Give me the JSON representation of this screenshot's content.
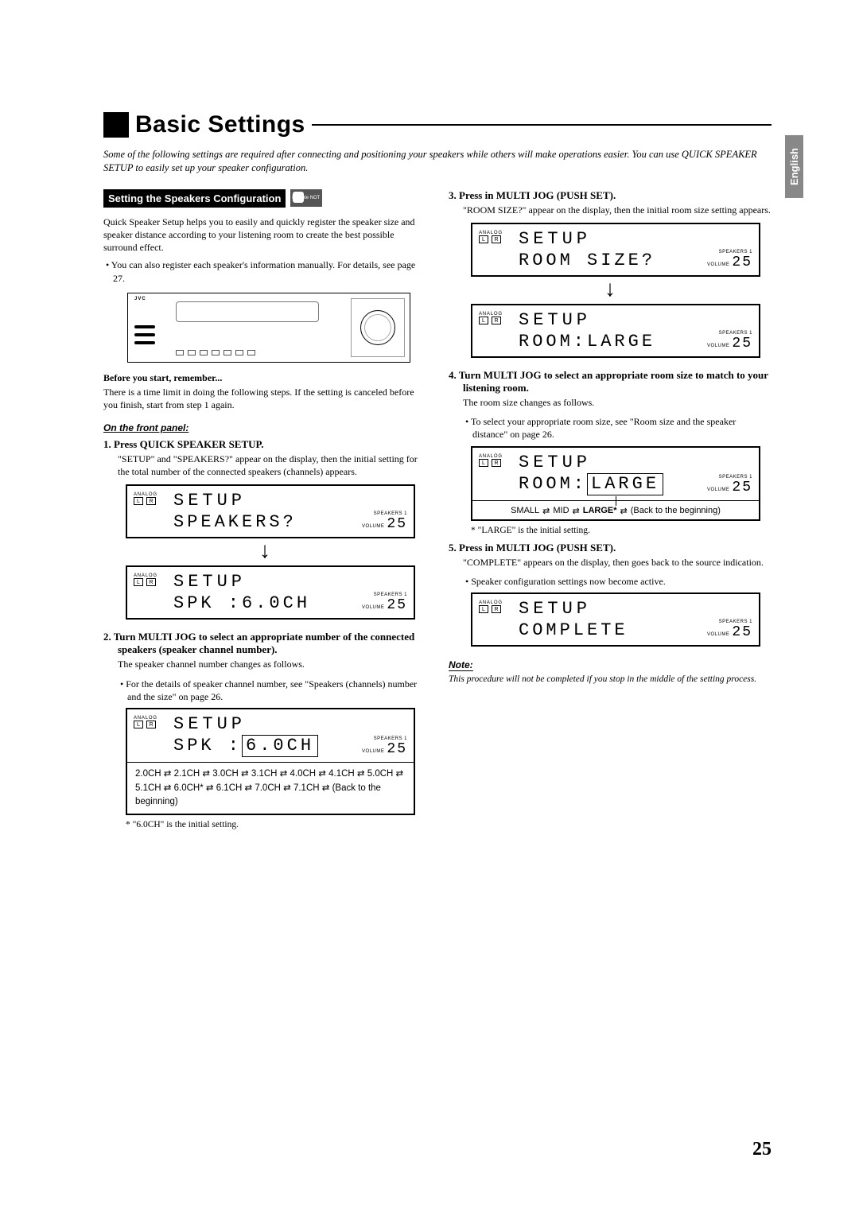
{
  "page_title": "Basic Settings",
  "intro_text": "Some of the following settings are required after connecting and positioning your speakers while others will make operations easier. You can use QUICK SPEAKER SETUP to easily set up your speaker configuration.",
  "side_tab": "English",
  "page_number": "25",
  "section_header": "Setting the Speakers Configuration",
  "remote_not_label": "Remote NOT",
  "left_column": {
    "intro": "Quick Speaker Setup helps you to easily and quickly register the speaker size and speaker distance according to your listening room to create the best possible surround effect.",
    "bullets": [
      "You can also register each speaker's information manually. For details, see page 27."
    ],
    "device_label": "JVC",
    "before_heading": "Before you start, remember...",
    "before_text": "There is a time limit in doing the following steps. If the setting is canceled before you finish, start from step 1 again.",
    "panel_label": "On the front panel:",
    "step1": {
      "heading": "1.  Press QUICK SPEAKER SETUP.",
      "body": "\"SETUP\" and \"SPEAKERS?\" appear on the display, then the initial setting for the total number of the connected speakers (channels) appears."
    },
    "display1": {
      "line1": "SETUP",
      "line2": "SPEAKERS?"
    },
    "display2": {
      "line1": "SETUP",
      "line2": "SPK :6.0CH"
    },
    "step2": {
      "heading": "2.  Turn MULTI JOG to select an appropriate number of the connected speakers (speaker channel number).",
      "body": "The speaker channel number changes as follows.",
      "bullet": "For the details of speaker channel number, see \"Speakers (channels) number and the size\" on page 26."
    },
    "display3": {
      "line1": "SETUP",
      "line2_pre": "SPK :",
      "line2_box": "6.0CH"
    },
    "channel_options": "2.0CH ⇄ 2.1CH ⇄ 3.0CH ⇄ 3.1CH ⇄ 4.0CH ⇄ 4.1CH ⇄ 5.0CH ⇄ 5.1CH ⇄ 6.0CH* ⇄ 6.1CH ⇄ 7.0CH ⇄ 7.1CH ⇄ (Back to the beginning)",
    "channel_footnote": "* \"6.0CH\" is the initial setting."
  },
  "right_column": {
    "step3": {
      "heading": "3.  Press in MULTI JOG (PUSH SET).",
      "body": "\"ROOM SIZE?\" appear on the display, then the initial room size setting appears."
    },
    "display4": {
      "line1": "SETUP",
      "line2": "ROOM SIZE?"
    },
    "display5": {
      "line1": "SETUP",
      "line2": "ROOM:LARGE"
    },
    "step4": {
      "heading": "4.  Turn MULTI JOG to select an appropriate room size to match to your listening room.",
      "body": "The room size changes as follows.",
      "bullet": "To select your appropriate room size, see \"Room size and the speaker distance\" on page 26."
    },
    "display6": {
      "line1": "SETUP",
      "line2_pre": "ROOM:",
      "line2_box": "LARGE"
    },
    "room_options_small": "SMALL",
    "room_options_mid": "MID",
    "room_options_large": "LARGE*",
    "room_options_back": "(Back to the beginning)",
    "room_footnote": "* \"LARGE\" is the initial setting.",
    "step5": {
      "heading": "5.  Press in MULTI JOG (PUSH SET).",
      "body": "\"COMPLETE\" appears on the display, then goes back to the source indication.",
      "bullet": "Speaker configuration settings now become active."
    },
    "display7": {
      "line1": "SETUP",
      "line2": "COMPLETE"
    },
    "note_heading": "Note:",
    "note_body": "This procedure will not be completed if you stop in the middle of the setting process."
  },
  "lr": {
    "analog": "ANALOG",
    "l": "L",
    "r": "R"
  },
  "display_labels": {
    "speakers": "SPEAKERS 1",
    "volume": "VOLUME",
    "volume_val": "25"
  }
}
